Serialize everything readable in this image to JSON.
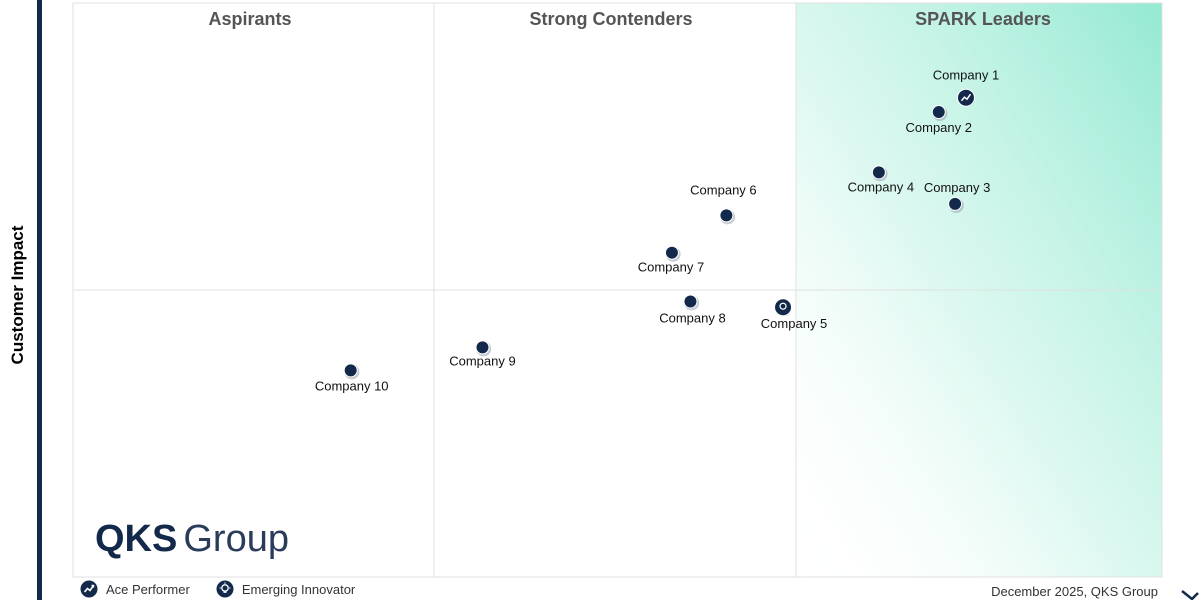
{
  "chart_data": {
    "type": "scatter",
    "title": "",
    "xlabel": "",
    "ylabel": "Customer Impact",
    "quadrants": [
      "Aspirants",
      "Strong Contenders",
      "SPARK Leaders"
    ],
    "points": [
      {
        "label": "Company 1",
        "x": 0.82,
        "y": 0.835,
        "marker": "ace"
      },
      {
        "label": "Company 2",
        "x": 0.795,
        "y": 0.81,
        "marker": "default"
      },
      {
        "label": "Company 3",
        "x": 0.81,
        "y": 0.65,
        "marker": "default"
      },
      {
        "label": "Company 4",
        "x": 0.74,
        "y": 0.705,
        "marker": "default"
      },
      {
        "label": "Company 5",
        "x": 0.652,
        "y": 0.47,
        "marker": "emerging"
      },
      {
        "label": "Company 6",
        "x": 0.6,
        "y": 0.63,
        "marker": "default"
      },
      {
        "label": "Company 7",
        "x": 0.55,
        "y": 0.565,
        "marker": "default"
      },
      {
        "label": "Company 8",
        "x": 0.567,
        "y": 0.48,
        "marker": "default"
      },
      {
        "label": "Company 9",
        "x": 0.376,
        "y": 0.4,
        "marker": "default"
      },
      {
        "label": "Company 10",
        "x": 0.255,
        "y": 0.36,
        "marker": "default"
      }
    ],
    "legend": [
      {
        "name": "Ace Performer",
        "icon": "ace-icon"
      },
      {
        "name": "Emerging Innovator",
        "icon": "emerging-icon"
      }
    ],
    "colors": {
      "marker": "#13294b",
      "leader_gradient": "#8ee8cf",
      "grid": "#dddddd"
    }
  },
  "logo": {
    "main": "QKS",
    "sub": "Group"
  },
  "footer": {
    "date_source": "December 2025, QKS Group"
  }
}
